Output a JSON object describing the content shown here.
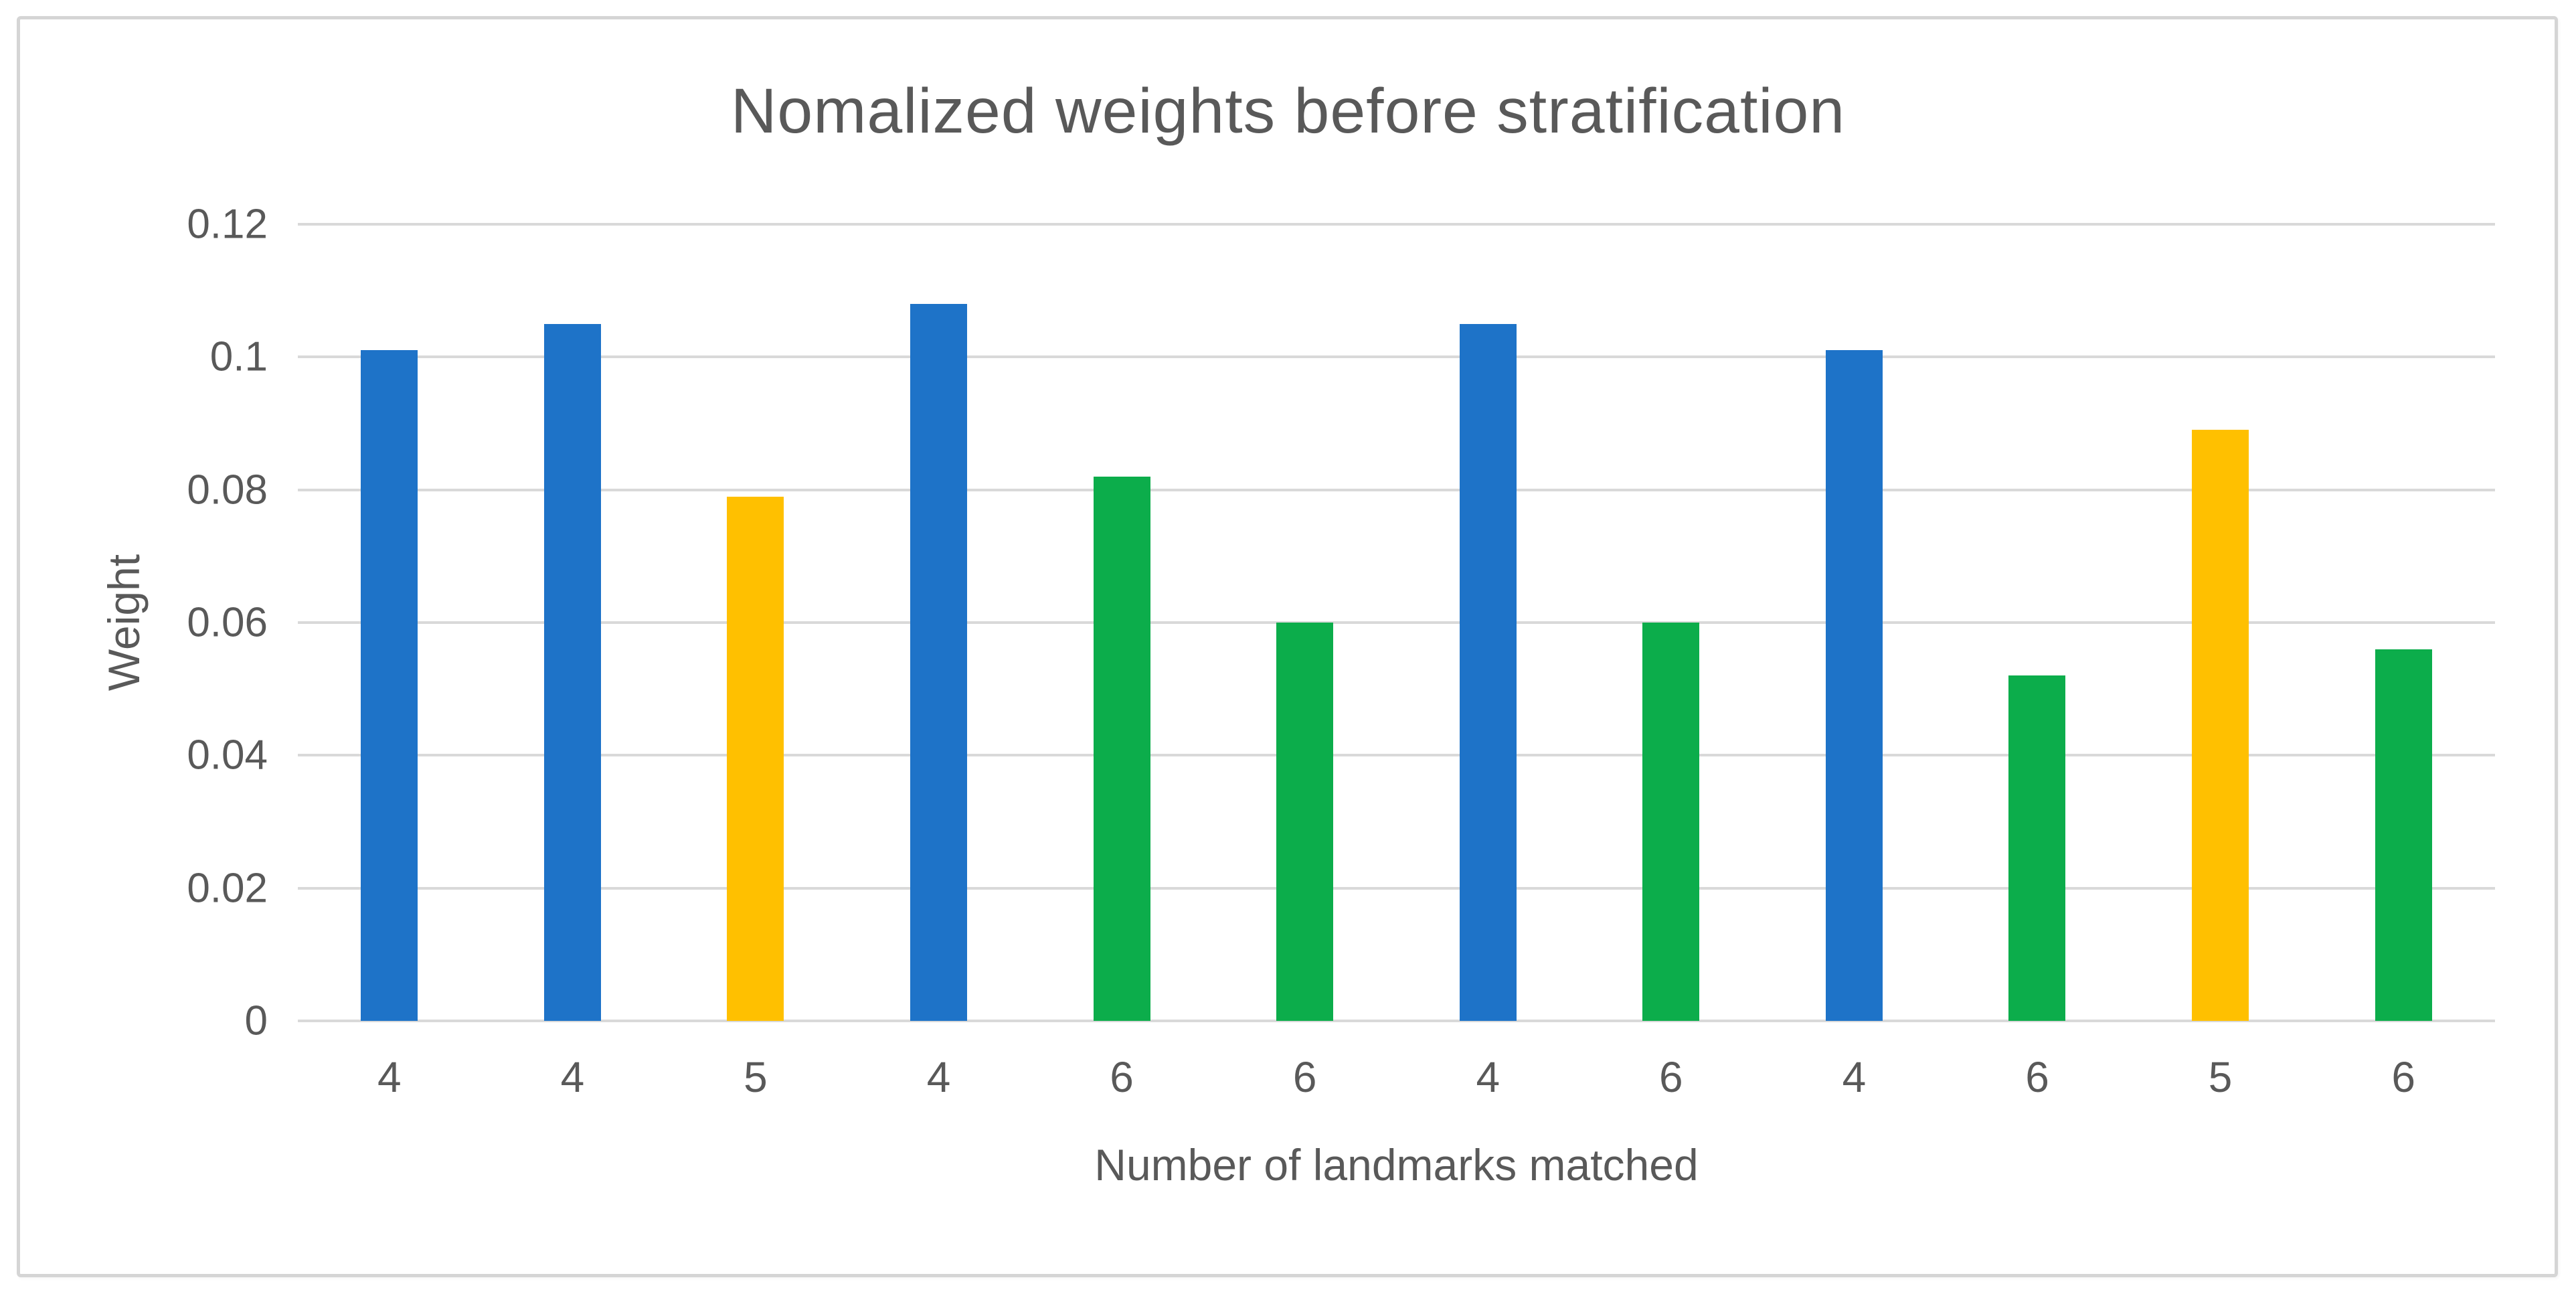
{
  "figure": {
    "title": "Nomalized weights before stratification",
    "border_color": "#d5d5d5",
    "background": "#ffffff"
  },
  "chart_data": {
    "type": "bar",
    "title": "Nomalized weights before stratification",
    "xlabel": "Number of landmarks matched",
    "ylabel": "Weight",
    "ylim": [
      0,
      0.12
    ],
    "yticks": [
      0,
      0.02,
      0.04,
      0.06,
      0.08,
      0.1,
      0.12
    ],
    "ytick_labels": [
      "0",
      "0.02",
      "0.04",
      "0.06",
      "0.08",
      "0.1",
      "0.12"
    ],
    "grid": "horizontal",
    "legend": "none",
    "categories": [
      "4",
      "4",
      "5",
      "4",
      "6",
      "6",
      "4",
      "6",
      "4",
      "6",
      "5",
      "6"
    ],
    "values": [
      0.101,
      0.105,
      0.079,
      0.108,
      0.082,
      0.06,
      0.105,
      0.06,
      0.101,
      0.052,
      0.089,
      0.056
    ],
    "bar_colors_by_category": {
      "4": "#1e73c8",
      "5": "#ffc000",
      "6": "#0cad4b"
    },
    "gridline_color": "#d9d9d9",
    "text_color": "#595959"
  }
}
